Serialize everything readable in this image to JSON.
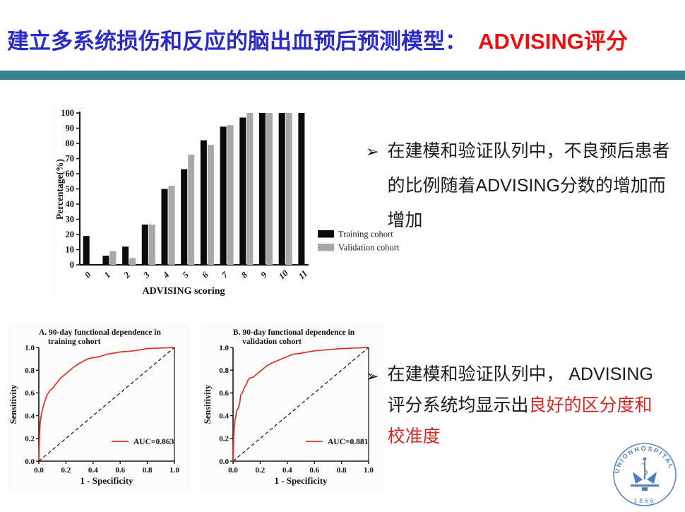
{
  "slide": {
    "title": {
      "main": "建立多系统损伤和反应的脑出血预后预测模型：",
      "highlight": "ADVISING评分"
    },
    "colors": {
      "title_blue": "#2b2cc7",
      "title_red": "#ea0e0e",
      "divider_teal": "#37808f",
      "bullet_red": "#cf2a22",
      "bar_black": "#0b0b0b",
      "bar_gray": "#a8a8a8",
      "roc_red": "#d93125"
    }
  },
  "bullets": {
    "b1": {
      "arrow": "➢",
      "lines": {
        "0": "在建模和验证队列中，不良预后患者",
        "1": "的比例随着ADVISING分数的增加而",
        "2": "增加"
      }
    },
    "b2": {
      "arrow": "➢",
      "line1": "在建模和验证队列中， ADVISING",
      "line2_black": "评分系统均显示出",
      "line2_red": "良好的区分度和",
      "line3": "校准度"
    }
  },
  "logo": {
    "arc_text": "UNIONHOSPITAL",
    "year": "1866",
    "color": "#4c7fc0"
  },
  "chart_data": [
    {
      "id": "bar",
      "type": "bar",
      "title": "",
      "xlabel": "ADVISING scoring",
      "ylabel": "Percentage(%)",
      "categories": [
        "0",
        "1",
        "2",
        "3",
        "4",
        "5",
        "6",
        "7",
        "8",
        "9",
        "10",
        "11"
      ],
      "ylim": [
        0,
        100
      ],
      "yticks": [
        0,
        10,
        20,
        30,
        40,
        50,
        60,
        70,
        80,
        90,
        100
      ],
      "legend_position": "right",
      "grid": false,
      "series": [
        {
          "name": "Training cohort",
          "color": "#0b0b0b",
          "values": [
            19,
            6,
            12,
            26.5,
            50,
            63,
            82,
            91,
            97,
            100,
            100,
            100
          ]
        },
        {
          "name": "Validation cohort",
          "color": "#a8a8a8",
          "values": [
            0,
            9,
            4.5,
            26.5,
            52,
            72.5,
            79,
            92,
            100,
            100,
            100,
            null
          ]
        }
      ]
    },
    {
      "id": "rocA",
      "type": "line",
      "title_line1": "A. 90-day functional dependence in",
      "title_line2": "training cohort",
      "xlabel": "1 - Specificity",
      "ylabel": "Sensitivity",
      "xlim": [
        0,
        1
      ],
      "ylim": [
        0,
        1
      ],
      "ticks": [
        0,
        0.2,
        0.4,
        0.6,
        0.8,
        1.0
      ],
      "legend": "AUC=0.863",
      "diagonal": true,
      "line_color": "#d93125",
      "points": [
        [
          0,
          0
        ],
        [
          0.004,
          0.18
        ],
        [
          0.006,
          0.27
        ],
        [
          0.01,
          0.33
        ],
        [
          0.015,
          0.38
        ],
        [
          0.02,
          0.42
        ],
        [
          0.03,
          0.47
        ],
        [
          0.04,
          0.51
        ],
        [
          0.05,
          0.55
        ],
        [
          0.06,
          0.58
        ],
        [
          0.07,
          0.6
        ],
        [
          0.08,
          0.62
        ],
        [
          0.09,
          0.63
        ],
        [
          0.1,
          0.64
        ],
        [
          0.12,
          0.67
        ],
        [
          0.14,
          0.7
        ],
        [
          0.16,
          0.73
        ],
        [
          0.18,
          0.75
        ],
        [
          0.2,
          0.77
        ],
        [
          0.23,
          0.8
        ],
        [
          0.26,
          0.83
        ],
        [
          0.3,
          0.86
        ],
        [
          0.33,
          0.88
        ],
        [
          0.36,
          0.9
        ],
        [
          0.4,
          0.91
        ],
        [
          0.45,
          0.92
        ],
        [
          0.5,
          0.94
        ],
        [
          0.55,
          0.95
        ],
        [
          0.6,
          0.96
        ],
        [
          0.7,
          0.97
        ],
        [
          0.8,
          0.99
        ],
        [
          0.9,
          0.995
        ],
        [
          1,
          1
        ]
      ]
    },
    {
      "id": "rocB",
      "type": "line",
      "title_line1": "B. 90-day functional dependence in",
      "title_line2": "validation cohort",
      "xlabel": "1 - Specificity",
      "ylabel": "Sensitivity",
      "xlim": [
        0,
        1
      ],
      "ylim": [
        0,
        1
      ],
      "ticks": [
        0,
        0.2,
        0.4,
        0.6,
        0.8,
        1.0
      ],
      "legend": "AUC=0.881",
      "diagonal": true,
      "line_color": "#d93125",
      "points": [
        [
          0,
          0
        ],
        [
          0.004,
          0.17
        ],
        [
          0.006,
          0.25
        ],
        [
          0.01,
          0.31
        ],
        [
          0.015,
          0.37
        ],
        [
          0.02,
          0.39
        ],
        [
          0.025,
          0.43
        ],
        [
          0.03,
          0.45
        ],
        [
          0.04,
          0.47
        ],
        [
          0.05,
          0.52
        ],
        [
          0.055,
          0.57
        ],
        [
          0.06,
          0.59
        ],
        [
          0.07,
          0.6
        ],
        [
          0.08,
          0.64
        ],
        [
          0.09,
          0.66
        ],
        [
          0.1,
          0.68
        ],
        [
          0.11,
          0.71
        ],
        [
          0.12,
          0.73
        ],
        [
          0.15,
          0.74
        ],
        [
          0.17,
          0.76
        ],
        [
          0.2,
          0.79
        ],
        [
          0.23,
          0.82
        ],
        [
          0.25,
          0.84
        ],
        [
          0.28,
          0.86
        ],
        [
          0.32,
          0.88
        ],
        [
          0.36,
          0.9
        ],
        [
          0.4,
          0.92
        ],
        [
          0.44,
          0.94
        ],
        [
          0.5,
          0.95
        ],
        [
          0.55,
          0.96
        ],
        [
          0.6,
          0.97
        ],
        [
          0.7,
          0.98
        ],
        [
          0.8,
          0.99
        ],
        [
          0.9,
          0.995
        ],
        [
          1,
          1
        ]
      ]
    }
  ]
}
